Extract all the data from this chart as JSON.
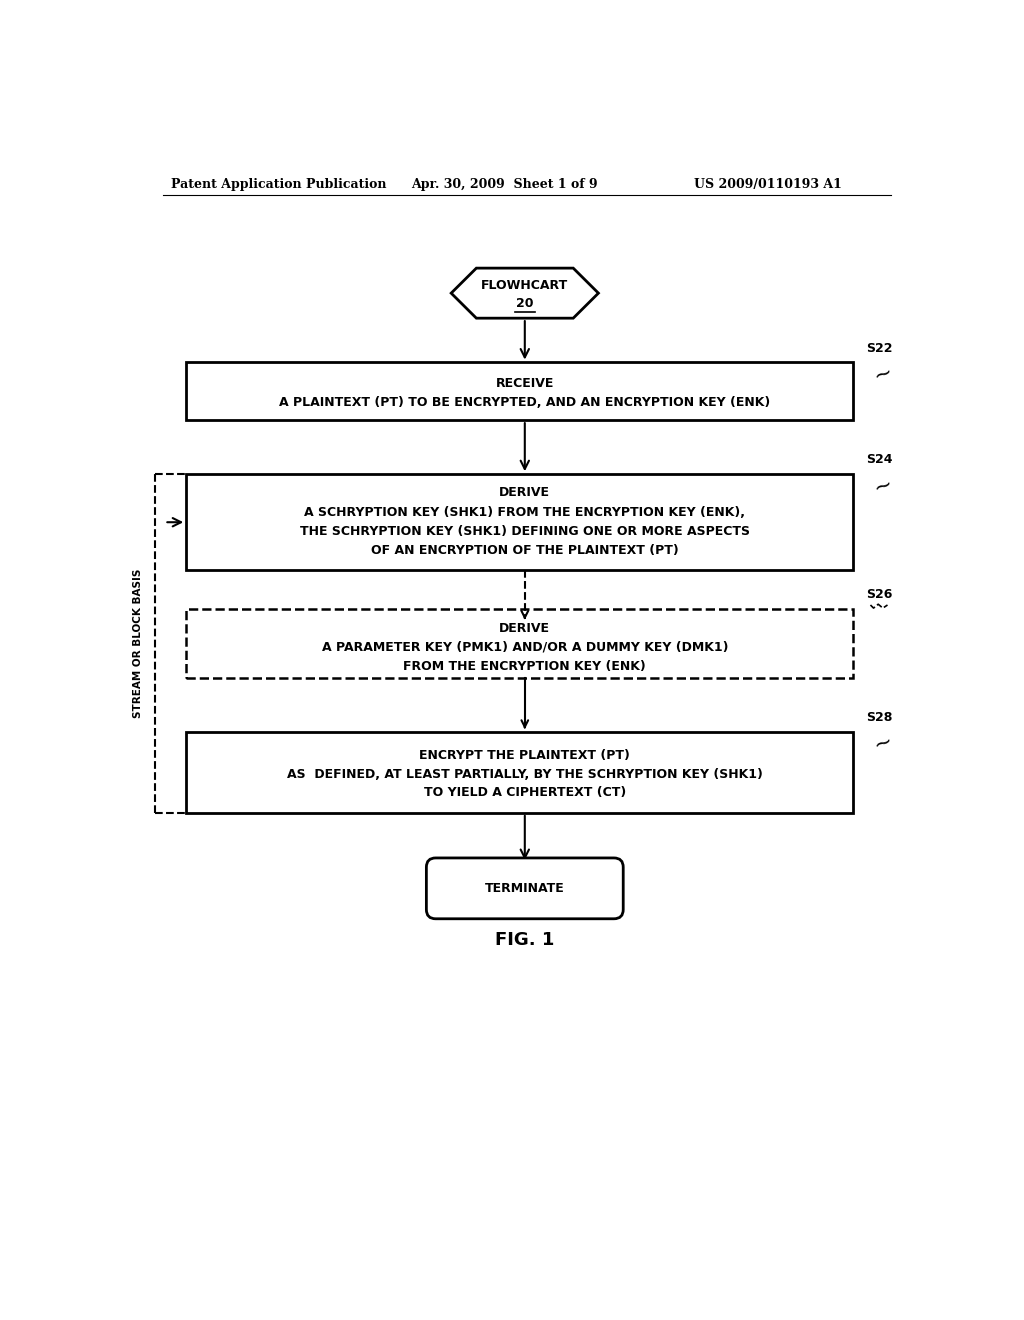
{
  "bg_color": "#ffffff",
  "header_left": "Patent Application Publication",
  "header_center": "Apr. 30, 2009  Sheet 1 of 9",
  "header_right": "US 2009/0110193 A1",
  "flowchart_label": "FLOWHCART",
  "flowchart_num": "20",
  "box1_line1": "RECEIVE",
  "box1_line2": "A PLAINTEXT (PT) TO BE ENCRYPTED, AND AN ENCRYPTION KEY (ENK)",
  "box1_tag": "S22",
  "box2_line1": "DERIVE",
  "box2_line2": "A SCHRYPTION KEY (SHK1) FROM THE ENCRYPTION KEY (ENK),",
  "box2_line3": "THE SCHRYPTION KEY (SHK1) DEFINING ONE OR MORE ASPECTS",
  "box2_line4": "OF AN ENCRYPTION OF THE PLAINTEXT (PT)",
  "box2_tag": "S24",
  "box3_line1": "DERIVE",
  "box3_line2": "A PARAMETER KEY (PMK1) AND/OR A DUMMY KEY (DMK1)",
  "box3_line3": "FROM THE ENCRYPTION KEY (ENK)",
  "box3_tag": "S26",
  "box4_line1": "ENCRYPT THE PLAINTEXT (PT)",
  "box4_line2": "AS  DEFINED, AT LEAST PARTIALLY, BY THE SCHRYPTION KEY (SHK1)",
  "box4_line3": "TO YIELD A CIPHERTEXT (CT)",
  "box4_tag": "S28",
  "terminate_label": "TERMINATE",
  "fig_label": "FIG. 1",
  "sidebar_label": "STREAM OR BLOCK BASIS"
}
